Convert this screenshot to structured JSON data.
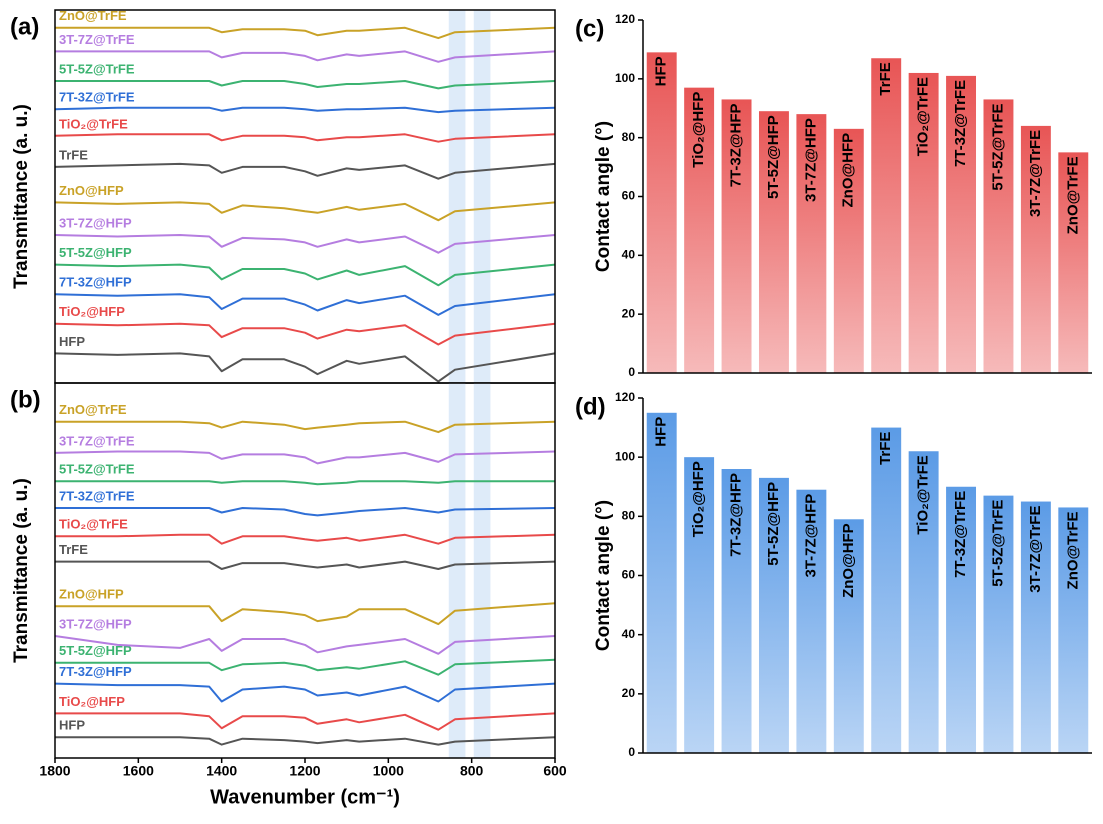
{
  "chart_data": [
    {
      "type": "line",
      "panel_label": "(a)",
      "ylabel": "Transmittance (a. u.)",
      "x": [
        1800,
        1650,
        1500,
        1430,
        1400,
        1350,
        1250,
        1200,
        1170,
        1100,
        1070,
        960,
        880,
        840,
        600
      ],
      "xlim": [
        1800,
        600
      ],
      "ylim": [
        0,
        12.6
      ],
      "highlight_bands": [
        [
          855,
          815
        ],
        [
          795,
          755
        ]
      ],
      "series": [
        {
          "name": "HFP",
          "color": "#555555",
          "values": [
            1.0,
            0.95,
            1.0,
            0.9,
            0.4,
            0.8,
            0.8,
            0.55,
            0.3,
            0.75,
            0.65,
            0.9,
            0.05,
            0.45,
            1.0
          ]
        },
        {
          "name": "TiO₂@HFP",
          "color": "#e84a4a",
          "values": [
            2.0,
            1.95,
            2.0,
            1.95,
            1.55,
            1.85,
            1.85,
            1.7,
            1.5,
            1.8,
            1.75,
            1.95,
            1.3,
            1.6,
            2.0
          ]
        },
        {
          "name": "7T-3Z@HFP",
          "color": "#2f6fd6",
          "values": [
            3.0,
            2.95,
            3.0,
            2.9,
            2.5,
            2.85,
            2.85,
            2.65,
            2.45,
            2.8,
            2.7,
            2.95,
            2.3,
            2.6,
            3.0
          ]
        },
        {
          "name": "5T-5Z@HFP",
          "color": "#3cb371",
          "values": [
            4.0,
            3.95,
            4.0,
            3.9,
            3.5,
            3.85,
            3.85,
            3.7,
            3.5,
            3.8,
            3.65,
            3.95,
            3.3,
            3.65,
            4.0
          ]
        },
        {
          "name": "3T-7Z@HFP",
          "color": "#b57de0",
          "values": [
            5.0,
            4.95,
            5.0,
            4.95,
            4.6,
            4.9,
            4.85,
            4.75,
            4.6,
            4.85,
            4.75,
            4.95,
            4.4,
            4.7,
            5.0
          ]
        },
        {
          "name": "ZnO@HFP",
          "color": "#c9a227",
          "values": [
            6.1,
            6.05,
            6.1,
            6.05,
            5.75,
            6.0,
            5.9,
            5.8,
            5.75,
            5.95,
            5.85,
            6.05,
            5.5,
            5.8,
            6.1
          ]
        },
        {
          "name": "TrFE",
          "color": "#555555",
          "values": [
            7.3,
            7.35,
            7.4,
            7.35,
            7.1,
            7.3,
            7.3,
            7.15,
            7.0,
            7.25,
            7.2,
            7.35,
            6.9,
            7.1,
            7.4
          ]
        },
        {
          "name": "TiO₂@TrFE",
          "color": "#e84a4a",
          "values": [
            8.35,
            8.4,
            8.4,
            8.4,
            8.2,
            8.35,
            8.35,
            8.3,
            8.2,
            8.3,
            8.3,
            8.4,
            8.15,
            8.25,
            8.4
          ]
        },
        {
          "name": "7T-3Z@TrFE",
          "color": "#2f6fd6",
          "values": [
            9.25,
            9.3,
            9.3,
            9.3,
            9.2,
            9.3,
            9.3,
            9.25,
            9.2,
            9.25,
            9.25,
            9.3,
            9.15,
            9.2,
            9.3
          ]
        },
        {
          "name": "5T-5Z@TrFE",
          "color": "#3cb371",
          "values": [
            10.2,
            10.2,
            10.2,
            10.2,
            10.05,
            10.2,
            10.2,
            10.1,
            10.0,
            10.1,
            10.1,
            10.2,
            9.95,
            10.05,
            10.2
          ]
        },
        {
          "name": "3T-7Z@TrFE",
          "color": "#b57de0",
          "values": [
            11.2,
            11.2,
            11.2,
            11.2,
            11.0,
            11.15,
            11.15,
            11.05,
            10.9,
            11.1,
            11.05,
            11.2,
            10.85,
            11.0,
            11.2
          ]
        },
        {
          "name": "ZnO@TrFE",
          "color": "#c9a227",
          "values": [
            12.0,
            12.0,
            12.0,
            12.0,
            11.85,
            11.95,
            11.95,
            11.9,
            11.75,
            11.9,
            11.9,
            12.0,
            11.65,
            11.85,
            12.0
          ]
        }
      ]
    },
    {
      "type": "line",
      "panel_label": "(b)",
      "ylabel": "Transmittance (a. u.)",
      "xlabel": "Wavenumber (cm⁻¹)",
      "x": [
        1800,
        1650,
        1500,
        1430,
        1400,
        1350,
        1250,
        1200,
        1170,
        1100,
        1070,
        960,
        880,
        840,
        600
      ],
      "xlim": [
        1800,
        600
      ],
      "xticks": [
        1800,
        1600,
        1400,
        1200,
        1000,
        800,
        600
      ],
      "ylim": [
        0,
        12.6
      ],
      "highlight_bands": [
        [
          855,
          815
        ],
        [
          795,
          755
        ]
      ],
      "series": [
        {
          "name": "HFP",
          "color": "#555555",
          "values": [
            0.7,
            0.7,
            0.7,
            0.65,
            0.45,
            0.65,
            0.6,
            0.55,
            0.5,
            0.6,
            0.55,
            0.65,
            0.45,
            0.55,
            0.7
          ]
        },
        {
          "name": "TiO₂@HFP",
          "color": "#e84a4a",
          "values": [
            1.5,
            1.5,
            1.5,
            1.4,
            1.0,
            1.4,
            1.4,
            1.35,
            1.15,
            1.3,
            1.2,
            1.45,
            0.95,
            1.3,
            1.5
          ]
        },
        {
          "name": "7T-3Z@HFP",
          "color": "#2f6fd6",
          "values": [
            2.5,
            2.45,
            2.45,
            2.4,
            1.9,
            2.3,
            2.4,
            2.3,
            2.1,
            2.2,
            2.1,
            2.4,
            1.9,
            2.3,
            2.5
          ]
        },
        {
          "name": "5T-5Z@HFP",
          "color": "#3cb371",
          "values": [
            3.2,
            3.2,
            3.2,
            3.2,
            2.95,
            3.15,
            3.2,
            3.1,
            2.95,
            3.05,
            3.0,
            3.25,
            2.8,
            3.15,
            3.3
          ]
        },
        {
          "name": "3T-7Z@HFP",
          "color": "#b57de0",
          "values": [
            4.1,
            3.8,
            3.7,
            4.0,
            3.6,
            4.0,
            4.0,
            3.8,
            3.55,
            3.75,
            3.8,
            4.0,
            3.5,
            3.9,
            4.1
          ]
        },
        {
          "name": "ZnO@HFP",
          "color": "#c9a227",
          "values": [
            5.1,
            5.1,
            5.1,
            5.1,
            4.6,
            5.0,
            4.9,
            4.8,
            4.6,
            4.75,
            5.0,
            5.0,
            4.5,
            4.95,
            5.2
          ]
        },
        {
          "name": "TrFE",
          "color": "#555555",
          "values": [
            6.6,
            6.6,
            6.6,
            6.6,
            6.35,
            6.55,
            6.55,
            6.45,
            6.4,
            6.5,
            6.4,
            6.6,
            6.35,
            6.5,
            6.6
          ]
        },
        {
          "name": "TiO₂@TrFE",
          "color": "#e84a4a",
          "values": [
            7.45,
            7.45,
            7.5,
            7.5,
            7.2,
            7.45,
            7.45,
            7.35,
            7.3,
            7.4,
            7.3,
            7.5,
            7.2,
            7.4,
            7.5
          ]
        },
        {
          "name": "7T-3Z@TrFE",
          "color": "#2f6fd6",
          "values": [
            8.4,
            8.4,
            8.4,
            8.4,
            8.25,
            8.4,
            8.35,
            8.2,
            8.15,
            8.25,
            8.3,
            8.4,
            8.25,
            8.35,
            8.4
          ]
        },
        {
          "name": "5T-5Z@TrFE",
          "color": "#3cb371",
          "values": [
            9.3,
            9.3,
            9.3,
            9.3,
            9.25,
            9.3,
            9.3,
            9.25,
            9.2,
            9.25,
            9.3,
            9.3,
            9.25,
            9.3,
            9.3
          ]
        },
        {
          "name": "3T-7Z@TrFE",
          "color": "#b57de0",
          "values": [
            10.25,
            10.3,
            10.3,
            10.25,
            10.05,
            10.2,
            10.2,
            10.1,
            9.9,
            10.1,
            10.1,
            10.25,
            9.95,
            10.2,
            10.3
          ]
        },
        {
          "name": "ZnO@TrFE",
          "color": "#c9a227",
          "values": [
            11.3,
            11.3,
            11.3,
            11.25,
            11.1,
            11.3,
            11.2,
            11.05,
            11.1,
            11.2,
            11.25,
            11.3,
            10.95,
            11.2,
            11.3
          ]
        }
      ]
    },
    {
      "type": "bar",
      "panel_label": "(c)",
      "ylabel": "Contact angle (°)",
      "categories": [
        "HFP",
        "TiO₂@HFP",
        "7T-3Z@HFP",
        "5T-5Z@HFP",
        "3T-7Z@HFP",
        "ZnO@HFP",
        "TrFE",
        "TiO₂@TrFE",
        "7T-3Z@TrFE",
        "5T-5Z@TrFE",
        "3T-7Z@TrFE",
        "ZnO@TrFE"
      ],
      "values": [
        109,
        97,
        93,
        89,
        88,
        83,
        107,
        102,
        101,
        93,
        84,
        75
      ],
      "color": [
        "#e85555",
        "#f6baba"
      ],
      "ylim": [
        0,
        120
      ],
      "yticks": [
        0,
        20,
        40,
        60,
        80,
        100,
        120
      ]
    },
    {
      "type": "bar",
      "panel_label": "(d)",
      "ylabel": "Contact angle (°)",
      "categories": [
        "HFP",
        "TiO₂@HFP",
        "7T-3Z@HFP",
        "5T-5Z@HFP",
        "3T-7Z@HFP",
        "ZnO@HFP",
        "TrFE",
        "TiO₂@TrFE",
        "7T-3Z@TrFE",
        "5T-5Z@TrFE",
        "3T-7Z@TrFE",
        "ZnO@TrFE"
      ],
      "values": [
        115,
        100,
        96,
        93,
        89,
        79,
        110,
        102,
        90,
        87,
        85,
        83
      ],
      "color": [
        "#5b9be6",
        "#bad5f5"
      ],
      "ylim": [
        0,
        120
      ],
      "yticks": [
        0,
        20,
        40,
        60,
        80,
        100,
        120
      ]
    }
  ]
}
